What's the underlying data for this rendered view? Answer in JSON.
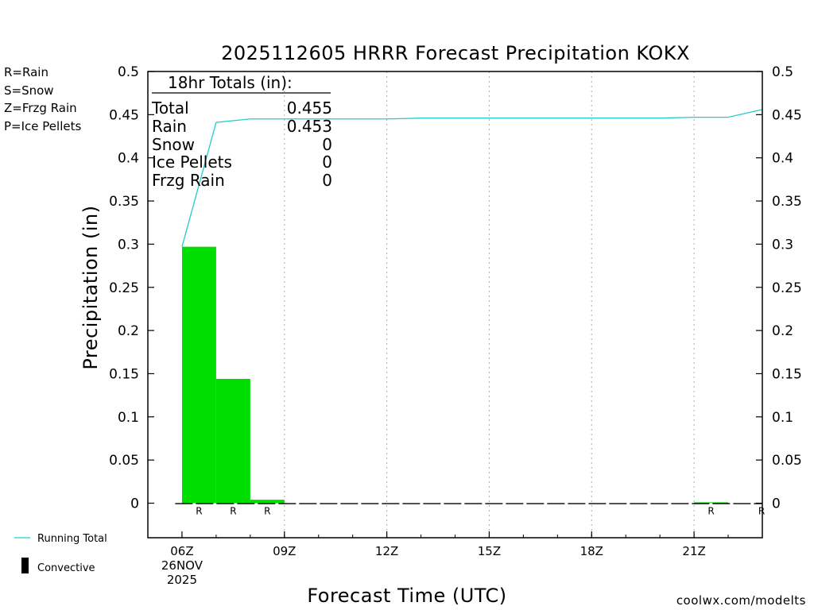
{
  "chart_data": {
    "type": "bar",
    "title": "2025112605 HRRR Forecast Precipitation KOKX",
    "xlabel": "Forecast Time (UTC)",
    "ylabel": "Precipitation (in)",
    "ylim": [
      -0.04,
      0.5
    ],
    "xlim": [
      5.0,
      23.0
    ],
    "yticks": [
      0,
      0.05,
      0.1,
      0.15,
      0.2,
      0.25,
      0.3,
      0.35,
      0.4,
      0.45,
      0.5
    ],
    "ytick_labels": [
      "0",
      "0.05",
      "0.1",
      "0.15",
      "0.2",
      "0.25",
      "0.3",
      "0.35",
      "0.4",
      "0.45",
      "0.5"
    ],
    "xticks": [
      {
        "hour": 6,
        "lines": [
          "06Z",
          "26NOV",
          "2025"
        ]
      },
      {
        "hour": 9,
        "lines": [
          "09Z"
        ]
      },
      {
        "hour": 12,
        "lines": [
          "12Z"
        ]
      },
      {
        "hour": 15,
        "lines": [
          "15Z"
        ]
      },
      {
        "hour": 18,
        "lines": [
          "18Z"
        ]
      },
      {
        "hour": 21,
        "lines": [
          "21Z"
        ]
      }
    ],
    "hourly_precip": [
      {
        "hour": 6,
        "value": 0.297,
        "ptype": "R"
      },
      {
        "hour": 7,
        "value": 0.144,
        "ptype": "R"
      },
      {
        "hour": 8,
        "value": 0.004,
        "ptype": "R"
      },
      {
        "hour": 9,
        "value": 0.0,
        "ptype": ""
      },
      {
        "hour": 10,
        "value": 0.0,
        "ptype": ""
      },
      {
        "hour": 11,
        "value": 0.0,
        "ptype": ""
      },
      {
        "hour": 12,
        "value": 0.0,
        "ptype": ""
      },
      {
        "hour": 13,
        "value": 0.0,
        "ptype": ""
      },
      {
        "hour": 14,
        "value": 0.0,
        "ptype": ""
      },
      {
        "hour": 15,
        "value": 0.0,
        "ptype": ""
      },
      {
        "hour": 16,
        "value": 0.0,
        "ptype": ""
      },
      {
        "hour": 17,
        "value": 0.0,
        "ptype": ""
      },
      {
        "hour": 18,
        "value": 0.0,
        "ptype": ""
      },
      {
        "hour": 19,
        "value": 0.0,
        "ptype": ""
      },
      {
        "hour": 20,
        "value": 0.0,
        "ptype": ""
      },
      {
        "hour": 21,
        "value": 0.001,
        "ptype": "R"
      },
      {
        "hour": 22,
        "value": 0.0,
        "ptype": ""
      },
      {
        "hour": 23,
        "value": 0.009,
        "ptype": "R"
      }
    ],
    "running_total": {
      "name": "Running Total",
      "x": [
        6,
        7,
        8,
        9,
        10,
        11,
        12,
        13,
        14,
        15,
        16,
        17,
        18,
        19,
        20,
        21,
        22,
        23
      ],
      "y": [
        0.297,
        0.441,
        0.445,
        0.445,
        0.445,
        0.445,
        0.445,
        0.446,
        0.446,
        0.446,
        0.446,
        0.446,
        0.446,
        0.446,
        0.446,
        0.447,
        0.447,
        0.456
      ]
    },
    "totals_box": {
      "header": "18hr Totals (in):",
      "rows": [
        {
          "label": "Total",
          "value": "0.455"
        },
        {
          "label": "Rain",
          "value": "0.453"
        },
        {
          "label": "Snow",
          "value": "0"
        },
        {
          "label": "Ice Pellets",
          "value": "0"
        },
        {
          "label": "Frzg Rain",
          "value": "0"
        }
      ]
    },
    "ptype_legend": [
      {
        "text": "R=Rain",
        "color": "#00dd00"
      },
      {
        "text": "S=Snow",
        "color": "#3355ee"
      },
      {
        "text": "Z=Frzg Rain",
        "color": "#ee8833"
      },
      {
        "text": "P=Ice Pellets",
        "color": "#ee2288"
      }
    ],
    "series_legend": {
      "running_total": "Running Total",
      "convective": "Convective"
    },
    "credit": "coolwx.com/modelts",
    "colors": {
      "bar": "#00dd00",
      "line": "#22cccc",
      "credit": "#dd2222",
      "grid": "#aaaaaa",
      "axis": "#000000",
      "convective": "#000000"
    }
  }
}
